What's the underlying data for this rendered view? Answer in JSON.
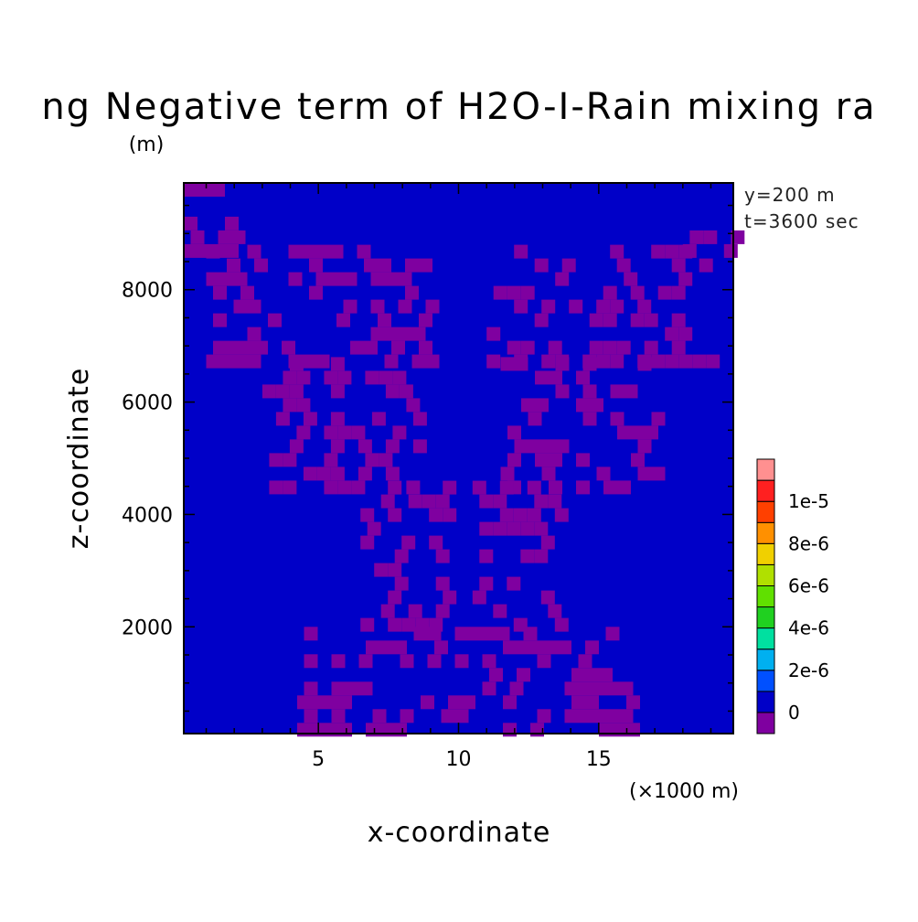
{
  "chart_data": {
    "type": "heatmap",
    "title": "ng Negative term of H2O-I-Rain mixing ra",
    "xlabel": "x-coordinate",
    "ylabel": "z-coordinate",
    "x_unit": "(×1000 m)",
    "y_unit": "(m)",
    "annotations": [
      "y=200 m",
      "t=3600 sec"
    ],
    "xlim": [
      0.2,
      19.8
    ],
    "ylim": [
      100,
      9900
    ],
    "x_ticks": [
      5,
      10,
      15
    ],
    "x_tick_labels": [
      "5",
      "10",
      "15"
    ],
    "y_ticks": [
      2000,
      4000,
      6000,
      8000
    ],
    "y_tick_labels": [
      "2000",
      "4000",
      "6000",
      "8000"
    ],
    "colorbar": {
      "levels": [
        -1e-06,
        0,
        1e-06,
        2e-06,
        3e-06,
        4e-06,
        5e-06,
        6e-06,
        7e-06,
        8e-06,
        9e-06,
        1e-05,
        1.1e-05
      ],
      "colors": [
        "#7f00a0",
        "#0000c8",
        "#0050ff",
        "#00b0f0",
        "#00e0a0",
        "#20d020",
        "#60e000",
        "#b0e000",
        "#f0d000",
        "#ff9000",
        "#ff4000",
        "#ff2020",
        "#ff9090"
      ],
      "labels": [
        "0",
        "2e-6",
        "4e-6",
        "6e-6",
        "8e-6",
        "1e-5"
      ]
    },
    "field_description": "Mostly 0 (blue) with scattered negative values (purple) forming a symmetric V-shaped pattern about x=10",
    "background_value": 0,
    "negative_regions": [
      {
        "x": [
          0.2,
          2.0
        ],
        "z": [
          8700,
          9300
        ]
      },
      {
        "x": [
          1.0,
          9.0
        ],
        "z": [
          6800,
          8800
        ]
      },
      {
        "x": [
          3.0,
          8.5
        ],
        "z": [
          4600,
          6800
        ]
      },
      {
        "x": [
          6.5,
          9.5
        ],
        "z": [
          2000,
          4600
        ]
      },
      {
        "x": [
          4.0,
          16.0
        ],
        "z": [
          100,
          2000
        ]
      },
      {
        "x": [
          11.0,
          19.0
        ],
        "z": [
          6800,
          8800
        ]
      },
      {
        "x": [
          11.5,
          17.0
        ],
        "z": [
          4600,
          6800
        ]
      },
      {
        "x": [
          10.5,
          13.5
        ],
        "z": [
          2000,
          4600
        ]
      },
      {
        "x": [
          18.0,
          19.8
        ],
        "z": [
          8700,
          9300
        ]
      },
      {
        "x": [
          0.2,
          2.0
        ],
        "z": [
          9700,
          9900
        ]
      }
    ]
  }
}
